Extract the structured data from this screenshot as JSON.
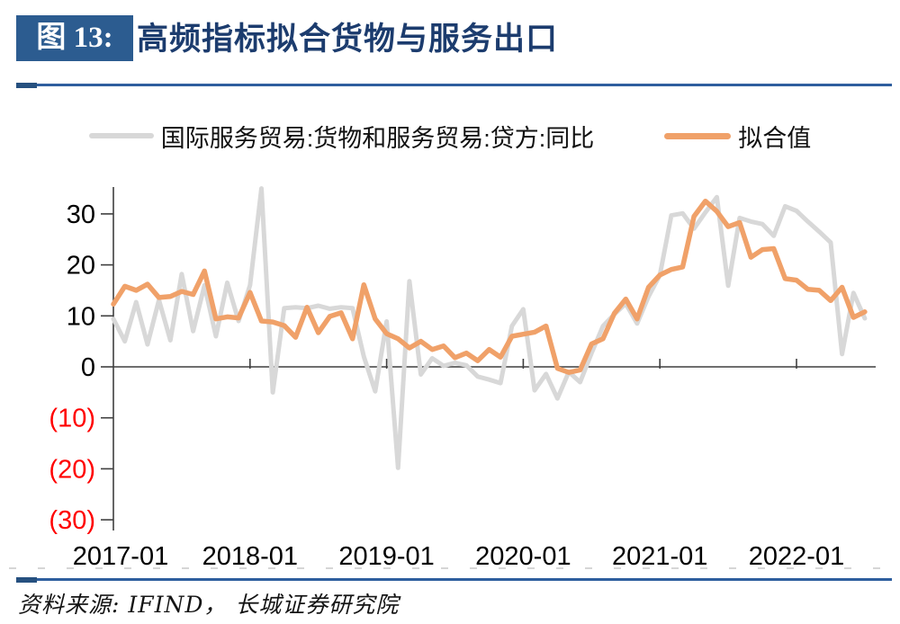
{
  "header": {
    "figure_label": "图 13:",
    "title": "高频指标拟合货物与服务出口"
  },
  "legend": {
    "items": [
      {
        "label": "国际服务贸易:货物和服务贸易:贷方:同比",
        "color": "#D8D8D8"
      },
      {
        "label": "拟合值",
        "color": "#F0A169"
      }
    ]
  },
  "footer": {
    "source": "资料来源: IFIND， 长城证券研究院"
  },
  "chart_data": {
    "type": "line",
    "title": "高频指标拟合货物与服务出口",
    "xlabel": "",
    "ylabel": "",
    "ylim": [
      -31,
      35
    ],
    "grid": false,
    "legend_position": "top",
    "y_axis": {
      "ticks": [
        {
          "label": "30",
          "value": 30,
          "color": "#000000"
        },
        {
          "label": "20",
          "value": 20,
          "color": "#000000"
        },
        {
          "label": "10",
          "value": 10,
          "color": "#000000"
        },
        {
          "label": "0",
          "value": 0,
          "color": "#000000"
        },
        {
          "label": "(10)",
          "value": -10,
          "color": "#FF0000"
        },
        {
          "label": "(20)",
          "value": -20,
          "color": "#FF0000"
        },
        {
          "label": "(30)",
          "value": -30,
          "color": "#FF0000"
        }
      ]
    },
    "x_axis": {
      "ticks": [
        {
          "label": "2017-01",
          "month_index": 0
        },
        {
          "label": "2018-01",
          "month_index": 12
        },
        {
          "label": "2019-01",
          "month_index": 24
        },
        {
          "label": "2020-01",
          "month_index": 36
        },
        {
          "label": "2021-01",
          "month_index": 48
        },
        {
          "label": "2022-01",
          "month_index": 60
        }
      ]
    },
    "x": [
      "2017-01",
      "2017-02",
      "2017-03",
      "2017-04",
      "2017-05",
      "2017-06",
      "2017-07",
      "2017-08",
      "2017-09",
      "2017-10",
      "2017-11",
      "2017-12",
      "2018-01",
      "2018-02",
      "2018-03",
      "2018-04",
      "2018-05",
      "2018-06",
      "2018-07",
      "2018-08",
      "2018-09",
      "2018-10",
      "2018-11",
      "2018-12",
      "2019-01",
      "2019-02",
      "2019-03",
      "2019-04",
      "2019-05",
      "2019-06",
      "2019-07",
      "2019-08",
      "2019-09",
      "2019-10",
      "2019-11",
      "2019-12",
      "2020-01",
      "2020-02",
      "2020-03",
      "2020-04",
      "2020-05",
      "2020-06",
      "2020-07",
      "2020-08",
      "2020-09",
      "2020-10",
      "2020-11",
      "2020-12",
      "2021-01",
      "2021-02",
      "2021-03",
      "2021-04",
      "2021-05",
      "2021-06",
      "2021-07",
      "2021-08",
      "2021-09",
      "2021-10",
      "2021-11",
      "2021-12",
      "2022-01",
      "2022-02",
      "2022-03",
      "2022-04",
      "2022-05",
      "2022-06",
      "2022-07"
    ],
    "series": [
      {
        "name": "国际服务贸易:货物和服务贸易:贷方:同比",
        "color": "#D8D8D8",
        "width": 5,
        "values": [
          9.4,
          5.0,
          12.7,
          4.4,
          13.1,
          5.2,
          18.2,
          7.0,
          16.0,
          6.0,
          16.5,
          9.0,
          16.0,
          35.0,
          -5.0,
          11.5,
          11.7,
          11.5,
          12.0,
          11.4,
          11.7,
          11.5,
          2.0,
          -4.8,
          8.9,
          -19.8,
          16.8,
          -1.5,
          1.7,
          0.2,
          0.8,
          0.3,
          -1.9,
          -2.5,
          -3.2,
          8.0,
          11.3,
          -4.6,
          -1.4,
          -6.2,
          -1.0,
          -3.0,
          2.7,
          8.0,
          10.3,
          12.4,
          8.5,
          13.8,
          18.0,
          29.7,
          30.1,
          27.1,
          30.3,
          33.3,
          15.9,
          29.2,
          28.5,
          28.0,
          25.7,
          31.5,
          30.6,
          28.5,
          26.5,
          24.4,
          2.5,
          14.5,
          9.5
        ]
      },
      {
        "name": "拟合值",
        "color": "#F0A169",
        "width": 5.5,
        "values": [
          12.3,
          15.8,
          15.0,
          16.2,
          13.6,
          13.8,
          14.8,
          14.2,
          18.8,
          9.4,
          9.8,
          9.6,
          14.6,
          9.0,
          8.8,
          8.1,
          5.8,
          11.7,
          6.7,
          9.9,
          10.6,
          5.5,
          16.1,
          9.4,
          6.5,
          5.5,
          3.7,
          5.0,
          3.4,
          4.1,
          1.8,
          2.7,
          1.2,
          3.4,
          1.9,
          6.0,
          6.4,
          6.8,
          8.0,
          -0.3,
          -1.1,
          -0.6,
          4.5,
          5.5,
          10.5,
          13.3,
          9.4,
          15.6,
          18.0,
          19.1,
          19.6,
          29.5,
          32.5,
          30.5,
          27.5,
          28.3,
          21.5,
          23.0,
          23.2,
          17.3,
          17.0,
          15.2,
          15.0,
          13.0,
          15.6,
          9.7,
          10.8
        ]
      }
    ]
  }
}
